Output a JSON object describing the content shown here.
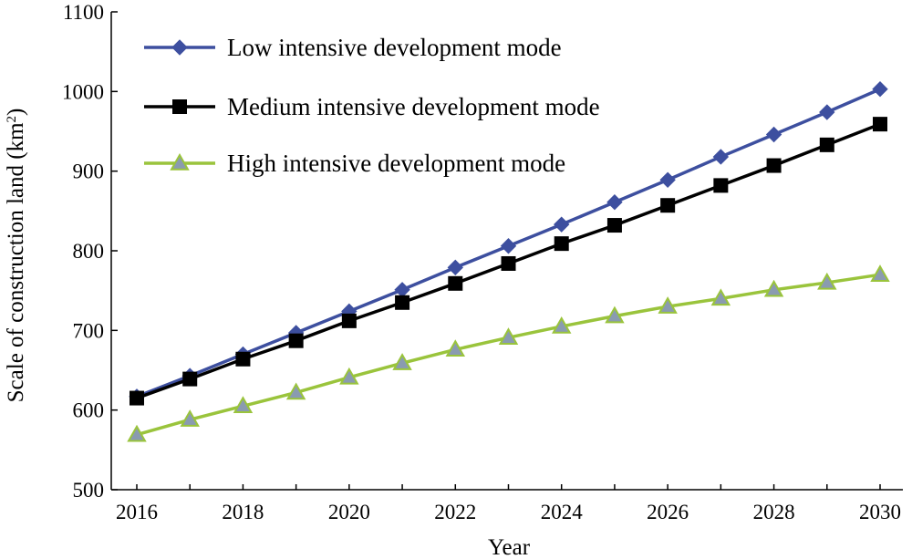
{
  "chart_data": {
    "type": "line",
    "title": "",
    "xlabel": "Year",
    "ylabel": "Scale of construction land (km²)",
    "ylabel_main": "Scale of construction land (km",
    "ylabel_sup": "2",
    "ylabel_end": ")",
    "xlim": [
      2016,
      2030
    ],
    "ylim": [
      500,
      1100
    ],
    "x_ticks": [
      2016,
      2018,
      2020,
      2022,
      2024,
      2026,
      2028,
      2030
    ],
    "y_ticks": [
      500,
      600,
      700,
      800,
      900,
      1000,
      1100
    ],
    "grid": false,
    "legend_position": "top-left",
    "x": [
      2016,
      2017,
      2018,
      2019,
      2020,
      2021,
      2022,
      2023,
      2024,
      2025,
      2026,
      2027,
      2028,
      2029,
      2030
    ],
    "series": [
      {
        "name": "Low intensive development mode",
        "color": "#3d4f9f",
        "marker": "diamond",
        "values": [
          617,
          643,
          670,
          697,
          724,
          751,
          779,
          806,
          833,
          861,
          889,
          918,
          946,
          974,
          1003
        ]
      },
      {
        "name": "Medium intensive development mode",
        "color": "#000000",
        "marker": "square",
        "values": [
          615,
          639,
          664,
          687,
          712,
          735,
          759,
          784,
          809,
          832,
          857,
          882,
          907,
          933,
          959
        ]
      },
      {
        "name": "High intensive development mode",
        "color": "#9ac43c",
        "marker": "triangle",
        "marker_fill": "#8a9bb0",
        "values": [
          569,
          588,
          605,
          622,
          641,
          659,
          676,
          691,
          705,
          718,
          730,
          740,
          751,
          760,
          770
        ]
      }
    ]
  }
}
